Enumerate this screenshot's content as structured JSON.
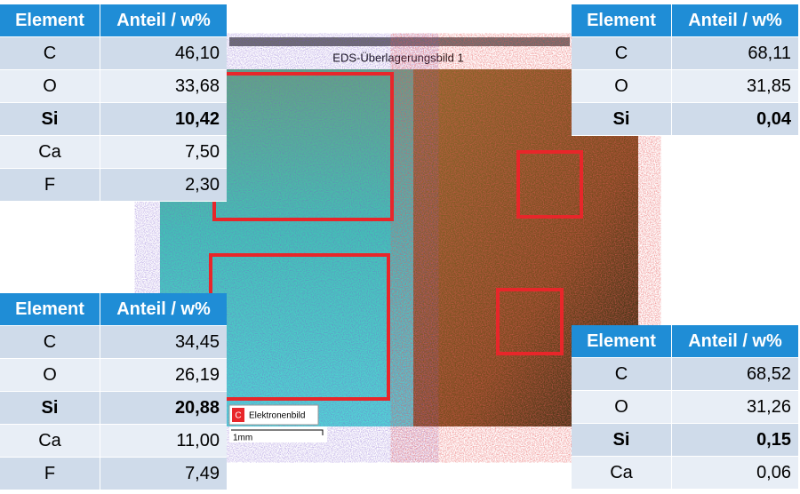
{
  "image": {
    "title": "EDS-Überlagerungsbild 1",
    "label_key": "C",
    "label": "Elektronenbild",
    "scale": "1mm"
  },
  "tables": [
    {
      "header": [
        "Element",
        "Anteil / w%"
      ],
      "bold_row": 2,
      "rows": [
        [
          "C",
          "46,10"
        ],
        [
          "O",
          "33,68"
        ],
        [
          "Si",
          "10,42"
        ],
        [
          "Ca",
          "7,50"
        ],
        [
          "F",
          "2,30"
        ]
      ]
    },
    {
      "header": [
        "Element",
        "Anteil / w%"
      ],
      "bold_row": 2,
      "rows": [
        [
          "C",
          "68,11"
        ],
        [
          "O",
          "31,85"
        ],
        [
          "Si",
          "0,04"
        ]
      ]
    },
    {
      "header": [
        "Element",
        "Anteil / w%"
      ],
      "bold_row": 2,
      "rows": [
        [
          "C",
          "34,45"
        ],
        [
          "O",
          "26,19"
        ],
        [
          "Si",
          "20,88"
        ],
        [
          "Ca",
          "11,00"
        ],
        [
          "F",
          "7,49"
        ]
      ]
    },
    {
      "header": [
        "Element",
        "Anteil / w%"
      ],
      "bold_row": 2,
      "rows": [
        [
          "C",
          "68,52"
        ],
        [
          "O",
          "31,26"
        ],
        [
          "Si",
          "0,15"
        ],
        [
          "Ca",
          "0,06"
        ]
      ]
    }
  ]
}
